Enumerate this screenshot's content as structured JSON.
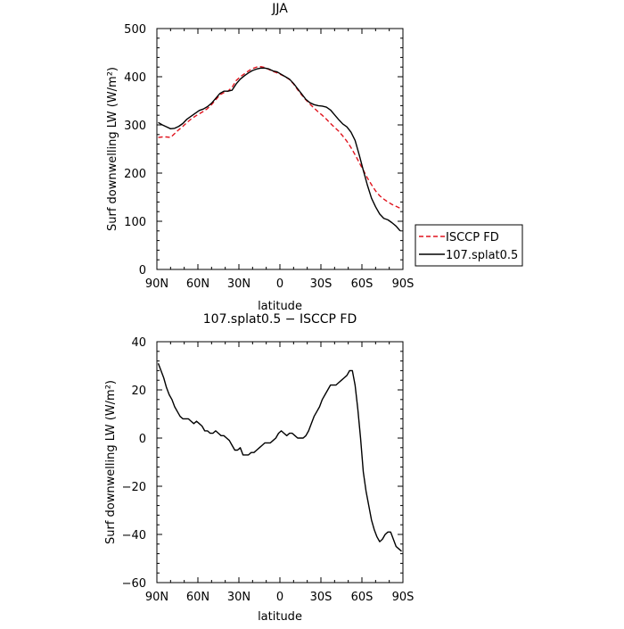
{
  "chart_data": [
    {
      "type": "line",
      "title": "JJA",
      "xlabel": "latitude",
      "ylabel": "Surf downwelling LW (W/m²)",
      "xlim": [
        90,
        -90
      ],
      "ylim": [
        0,
        500
      ],
      "x_ticks": [
        90,
        60,
        30,
        0,
        -30,
        -60,
        -90
      ],
      "x_tick_labels": [
        "90N",
        "60N",
        "30N",
        "0",
        "30S",
        "60S",
        "90S"
      ],
      "y_ticks": [
        0,
        100,
        200,
        300,
        400,
        500
      ],
      "y_tick_labels": [
        "0",
        "100",
        "200",
        "300",
        "400",
        "500"
      ],
      "legend_position": "right",
      "series": [
        {
          "name": "ISCCP FD",
          "color": "#e0141e",
          "dash": "dashed",
          "x": [
            89,
            86,
            83,
            80,
            77,
            74,
            71,
            68,
            65,
            62,
            59,
            56,
            53,
            50,
            47,
            44,
            41,
            38,
            35,
            32,
            29,
            26,
            23,
            20,
            17,
            14,
            11,
            8,
            5,
            2,
            -1,
            -4,
            -7,
            -10,
            -13,
            -16,
            -19,
            -22,
            -25,
            -28,
            -31,
            -34,
            -37,
            -40,
            -43,
            -46,
            -49,
            -52,
            -55,
            -58,
            -61,
            -64,
            -67,
            -70,
            -73,
            -76,
            -79,
            -82,
            -85,
            -88
          ],
          "y": [
            274,
            275,
            275,
            274,
            282,
            290,
            297,
            305,
            312,
            318,
            323,
            328,
            334,
            342,
            352,
            362,
            367,
            370,
            378,
            392,
            400,
            406,
            412,
            417,
            420,
            421,
            419,
            415,
            411,
            408,
            404,
            400,
            394,
            385,
            373,
            362,
            352,
            343,
            335,
            327,
            320,
            312,
            303,
            295,
            287,
            277,
            266,
            253,
            238,
            222,
            206,
            190,
            176,
            163,
            153,
            146,
            140,
            135,
            131,
            127
          ]
        },
        {
          "name": "107.splat0.5",
          "color": "#000000",
          "dash": "solid",
          "x": [
            89,
            86,
            83,
            80,
            77,
            74,
            71,
            68,
            65,
            62,
            59,
            56,
            53,
            50,
            47,
            44,
            41,
            38,
            35,
            32,
            29,
            26,
            23,
            20,
            17,
            14,
            11,
            8,
            5,
            2,
            -1,
            -4,
            -7,
            -10,
            -13,
            -16,
            -19,
            -22,
            -25,
            -28,
            -31,
            -34,
            -37,
            -40,
            -43,
            -46,
            -49,
            -52,
            -55,
            -58,
            -61,
            -64,
            -67,
            -70,
            -73,
            -76,
            -79,
            -82,
            -85,
            -88
          ],
          "y": [
            305,
            300,
            296,
            292,
            293,
            297,
            303,
            312,
            318,
            324,
            330,
            333,
            338,
            345,
            355,
            365,
            370,
            370,
            372,
            385,
            395,
            402,
            408,
            413,
            416,
            418,
            418,
            416,
            412,
            410,
            405,
            400,
            395,
            386,
            375,
            364,
            353,
            346,
            342,
            340,
            339,
            337,
            331,
            321,
            311,
            302,
            296,
            285,
            268,
            238,
            206,
            175,
            148,
            130,
            115,
            106,
            103,
            97,
            90,
            80
          ]
        }
      ]
    },
    {
      "type": "line",
      "title": "107.splat0.5 − ISCCP FD",
      "xlabel": "latitude",
      "ylabel": "Surf downwelling LW (W/m²)",
      "xlim": [
        90,
        -90
      ],
      "ylim": [
        -60,
        40
      ],
      "x_ticks": [
        90,
        60,
        30,
        0,
        -30,
        -60,
        -90
      ],
      "x_tick_labels": [
        "90N",
        "60N",
        "30N",
        "0",
        "30S",
        "60S",
        "90S"
      ],
      "y_ticks": [
        -60,
        -40,
        -20,
        0,
        20,
        40
      ],
      "y_tick_labels": [
        "−60",
        "−40",
        "−20",
        "0",
        "20",
        "40"
      ],
      "series": [
        {
          "color": "#000000",
          "dash": "solid",
          "x": [
            89,
            87,
            85,
            83,
            81,
            79,
            77,
            75,
            73,
            71,
            69,
            67,
            65,
            63,
            61,
            59,
            57,
            55,
            53,
            51,
            49,
            47,
            45,
            43,
            41,
            39,
            37,
            35,
            33,
            31,
            29,
            27,
            25,
            23,
            21,
            19,
            17,
            15,
            13,
            11,
            9,
            7,
            5,
            3,
            1,
            -1,
            -3,
            -5,
            -7,
            -9,
            -11,
            -13,
            -15,
            -17,
            -19,
            -21,
            -23,
            -25,
            -27,
            -29,
            -31,
            -33,
            -35,
            -37,
            -39,
            -41,
            -43,
            -45,
            -47,
            -49,
            -51,
            -53,
            -55,
            -57,
            -59,
            -61,
            -63,
            -65,
            -67,
            -69,
            -71,
            -73,
            -75,
            -77,
            -79,
            -81,
            -83,
            -85,
            -87,
            -89
          ],
          "y": [
            31,
            28,
            25,
            21,
            18,
            16,
            13,
            11,
            9,
            8,
            8,
            8,
            7,
            6,
            7,
            6,
            5,
            3,
            3,
            2,
            2,
            3,
            2,
            1,
            1,
            0,
            -1,
            -3,
            -5,
            -5,
            -4,
            -7,
            -7,
            -7,
            -6,
            -6,
            -5,
            -4,
            -3,
            -2,
            -2,
            -2,
            -1,
            0,
            2,
            3,
            2,
            1,
            2,
            2,
            1,
            0,
            0,
            0,
            1,
            3,
            6,
            9,
            11,
            13,
            16,
            18,
            20,
            22,
            22,
            22,
            23,
            24,
            25,
            26,
            28,
            28,
            22,
            12,
            0,
            -14,
            -22,
            -28,
            -34,
            -38,
            -41,
            -43,
            -42,
            -40,
            -39,
            -39,
            -42,
            -45,
            -46,
            -47
          ]
        }
      ]
    }
  ]
}
